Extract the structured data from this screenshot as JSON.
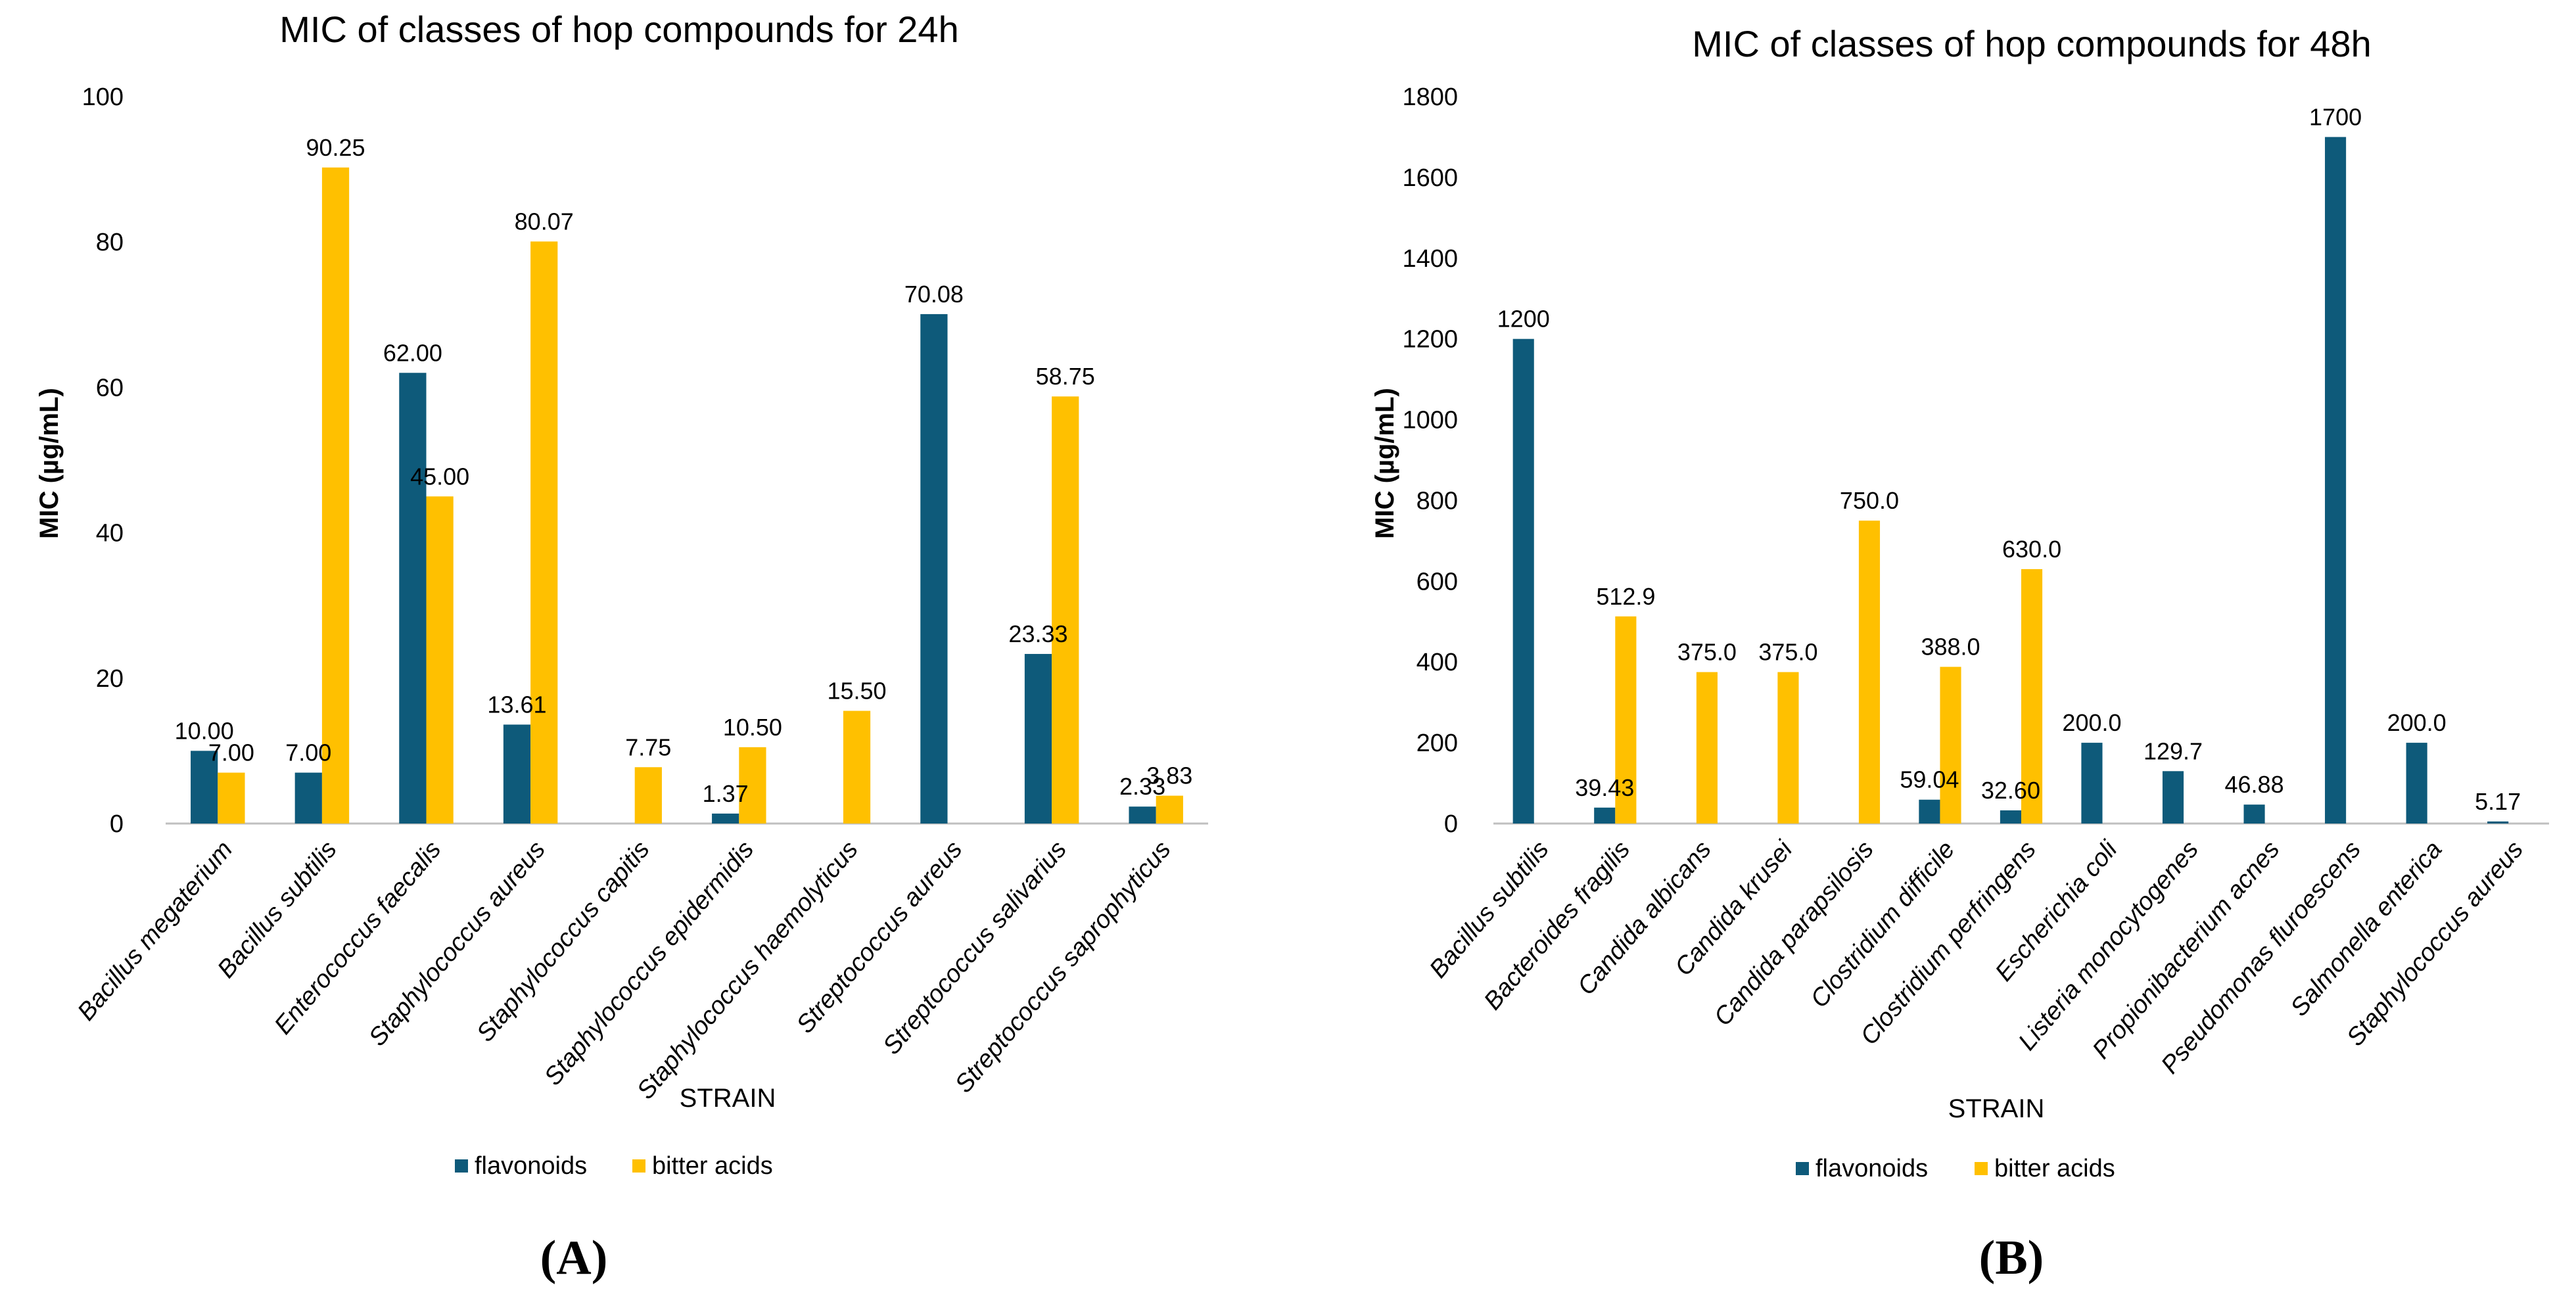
{
  "colors": {
    "flavonoids": "#0e5a7a",
    "bitter_acids": "#ffc000",
    "axis": "#bfbfbf"
  },
  "chart_data": [
    {
      "type": "bar",
      "title": "MIC of classes of hop compounds for 24h",
      "xlabel": "STRAIN",
      "ylabel": "MIC (µg/mL)",
      "ylim": [
        0,
        100
      ],
      "yticks": [
        "0",
        "20",
        "40",
        "60",
        "80",
        "100"
      ],
      "ytick_values": [
        0,
        20,
        40,
        60,
        80,
        100
      ],
      "categories": [
        "Bacillus megaterium",
        "Bacillus subtilis",
        "Enterococcus faecalis",
        "Staphylococcus aureus",
        "Staphylococcus capitis",
        "Staphylococcus epidermidis",
        "Staphylococcus haemolyticus",
        "Streptococcus aureus",
        "Streptococcus salivarius",
        "Streptococcus saprophyticus"
      ],
      "series": [
        {
          "name": "flavonoids",
          "values": [
            10.0,
            7.0,
            62.0,
            13.61,
            null,
            1.37,
            null,
            70.08,
            23.33,
            2.33
          ],
          "labels": [
            "10.00",
            "7.00",
            "62.00",
            "13.61",
            "",
            "1.37",
            "",
            "70.08",
            "23.33",
            "2.33"
          ]
        },
        {
          "name": "bitter acids",
          "values": [
            7.0,
            90.25,
            45.0,
            80.07,
            7.75,
            10.5,
            15.5,
            null,
            58.75,
            3.83
          ],
          "labels": [
            "7.00",
            "90.25",
            "45.00",
            "80.07",
            "7.75",
            "10.50",
            "15.50",
            "",
            "58.75",
            "3.83"
          ]
        }
      ],
      "legend_position": "bottom",
      "panel_label": "(A)"
    },
    {
      "type": "bar",
      "title": "MIC of classes of hop compounds for 48h",
      "xlabel": "STRAIN",
      "ylabel": "MIC (µg/mL)",
      "ylim": [
        0,
        1800
      ],
      "yticks": [
        "0",
        "200",
        "400",
        "600",
        "800",
        "1000",
        "1200",
        "1400",
        "1600",
        "1800"
      ],
      "ytick_values": [
        0,
        200,
        400,
        600,
        800,
        1000,
        1200,
        1400,
        1600,
        1800
      ],
      "categories": [
        "Bacillus subtilis",
        "Bacteroides fragilis",
        "Candida albicans",
        "Candida krusei",
        "Candida parapsilosis",
        "Clostridium difficile",
        "Clostridium perfringens",
        "Escherichia coli",
        "Listeria monocytogenes",
        "Propionibacterium acnes",
        "Pseudomonas fluroescens",
        "Salmonella enterica",
        "Staphylococcus aureus"
      ],
      "series": [
        {
          "name": "flavonoids",
          "values": [
            1200,
            39.43,
            null,
            null,
            null,
            59.04,
            32.6,
            200.0,
            129.7,
            46.88,
            1700,
            200.0,
            5.17
          ],
          "labels": [
            "1200",
            "39.43",
            "",
            "",
            "",
            "59.04",
            "32.60",
            "200.0",
            "129.7",
            "46.88",
            "1700",
            "200.0",
            "5.17"
          ]
        },
        {
          "name": "bitter acids",
          "values": [
            null,
            512.9,
            375.0,
            375.0,
            750.0,
            388.0,
            630.0,
            null,
            null,
            null,
            null,
            null,
            null
          ],
          "labels": [
            "",
            "512.9",
            "375.0",
            "375.0",
            "750.0",
            "388.0",
            "630.0",
            "",
            "",
            "",
            "",
            "",
            ""
          ]
        }
      ],
      "legend_position": "bottom",
      "panel_label": "(B)"
    }
  ]
}
